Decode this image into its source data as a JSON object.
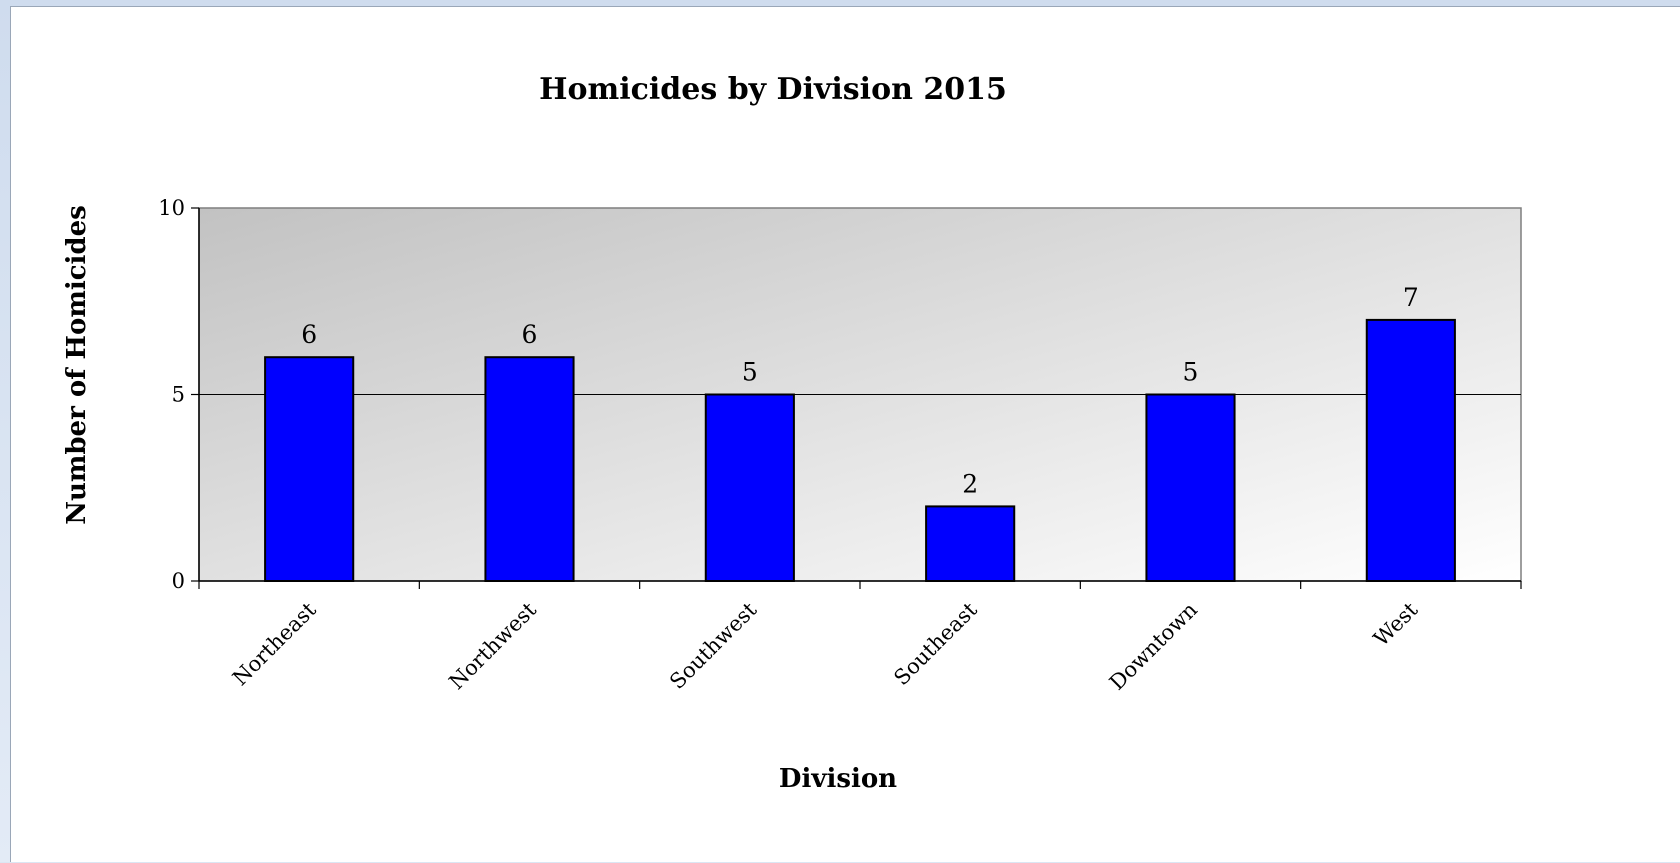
{
  "chart_data": {
    "type": "bar",
    "title": "Homicides by Division 2015",
    "xlabel": "Division",
    "ylabel": "Number of Homicides",
    "categories": [
      "Northeast",
      "Northwest",
      "Southwest",
      "Southeast",
      "Downtown",
      "West"
    ],
    "values": [
      6,
      6,
      5,
      2,
      5,
      7
    ],
    "ylim": [
      0,
      10
    ],
    "yticks": [
      0,
      5,
      10
    ],
    "grid": true,
    "legend": "none",
    "colors": {
      "bar": "#0000ff",
      "bar_border": "#000000",
      "plot_bg_dark": "#c2c2c2",
      "plot_bg_light": "#ffffff"
    }
  }
}
